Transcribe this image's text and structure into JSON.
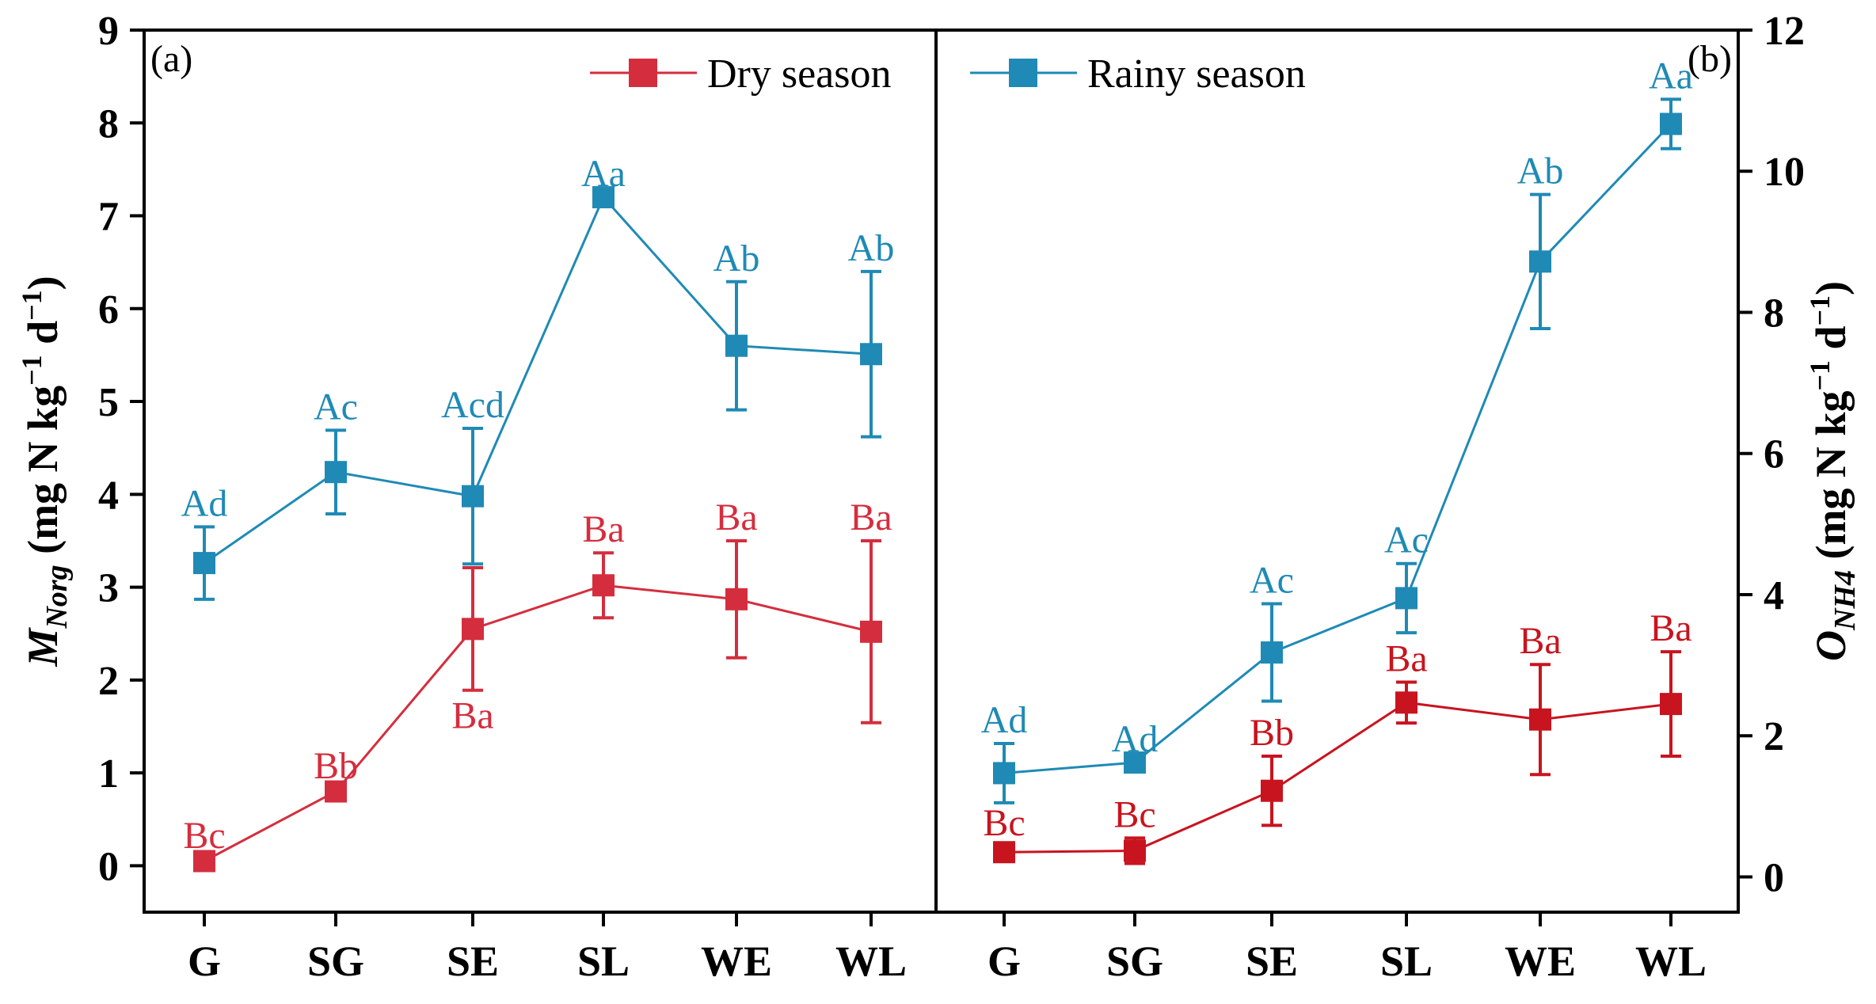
{
  "chart_data": [
    {
      "type": "line",
      "panel_label": "(a)",
      "ylabel_main": "M",
      "ylabel_sub": "Norg",
      "ylabel_rest": " (mg N kg",
      "ylabel_exp1": "−1",
      "ylabel_d": " d",
      "ylabel_exp2": "−1",
      "ylabel_close": ")",
      "y_axis_side": "left",
      "ylim": [
        -0.5,
        9
      ],
      "yticks": [
        "0",
        "1",
        "2",
        "3",
        "4",
        "5",
        "6",
        "7",
        "8",
        "9"
      ],
      "categories": [
        "G",
        "SG",
        "SE",
        "SL",
        "WE",
        "WL"
      ],
      "series": [
        {
          "name": "Dry season",
          "color": "#d42e3e",
          "values": [
            0.05,
            0.8,
            2.55,
            3.02,
            2.87,
            2.52
          ],
          "err": [
            0.02,
            0.02,
            0.66,
            0.35,
            0.63,
            0.98
          ],
          "labels": [
            "Bc",
            "Bb",
            "Ba",
            "Ba",
            "Ba",
            "Ba"
          ],
          "label_pos": [
            "above",
            "above",
            "below",
            "above",
            "above",
            "above"
          ]
        },
        {
          "name": "Rainy season",
          "color": "#1f8ab5",
          "values": [
            3.26,
            4.24,
            3.98,
            7.2,
            5.6,
            5.51
          ],
          "err": [
            0.39,
            0.45,
            0.73,
            0.0,
            0.69,
            0.89
          ],
          "labels": [
            "Ad",
            "Ac",
            "Acd",
            "Aa",
            "Ab",
            "Ab"
          ],
          "label_pos": [
            "above",
            "above",
            "above",
            "above",
            "above",
            "above"
          ]
        }
      ]
    },
    {
      "type": "line",
      "panel_label": "(b)",
      "ylabel_main": "O",
      "ylabel_sub": "NH4",
      "ylabel_rest": " (mg N kg",
      "ylabel_exp1": "−1",
      "ylabel_d": " d",
      "ylabel_exp2": "−1",
      "ylabel_close": ")",
      "y_axis_side": "right",
      "ylim": [
        -0.5,
        12
      ],
      "yticks": [
        "0",
        "2",
        "4",
        "6",
        "8",
        "10",
        "12"
      ],
      "categories": [
        "G",
        "SG",
        "SE",
        "SL",
        "WE",
        "WL"
      ],
      "series": [
        {
          "name": "Dry season",
          "color": "#c8141f",
          "values": [
            0.35,
            0.37,
            1.22,
            2.47,
            2.23,
            2.45
          ],
          "err": [
            0.08,
            0.18,
            0.49,
            0.29,
            0.78,
            0.74
          ],
          "labels": [
            "Bc",
            "Bc",
            "Bb",
            "Ba",
            "Ba",
            "Ba"
          ],
          "label_pos": [
            "above",
            "above",
            "above",
            "above",
            "above",
            "above"
          ]
        },
        {
          "name": "Rainy season",
          "color": "#1f8ab5",
          "values": [
            1.47,
            1.62,
            3.18,
            3.95,
            8.72,
            10.67
          ],
          "err": [
            0.42,
            0.0,
            0.69,
            0.49,
            0.95,
            0.35
          ],
          "labels": [
            "Ad",
            "Ad",
            "Ac",
            "Ac",
            "Ab",
            "Aa"
          ],
          "label_pos": [
            "above",
            "above",
            "above",
            "above",
            "above",
            "above"
          ]
        }
      ]
    }
  ],
  "legend": {
    "dry_label": "Dry season",
    "rainy_label": "Rainy season",
    "dry_color": "#d42e3e",
    "rainy_color": "#1f8ab5"
  }
}
